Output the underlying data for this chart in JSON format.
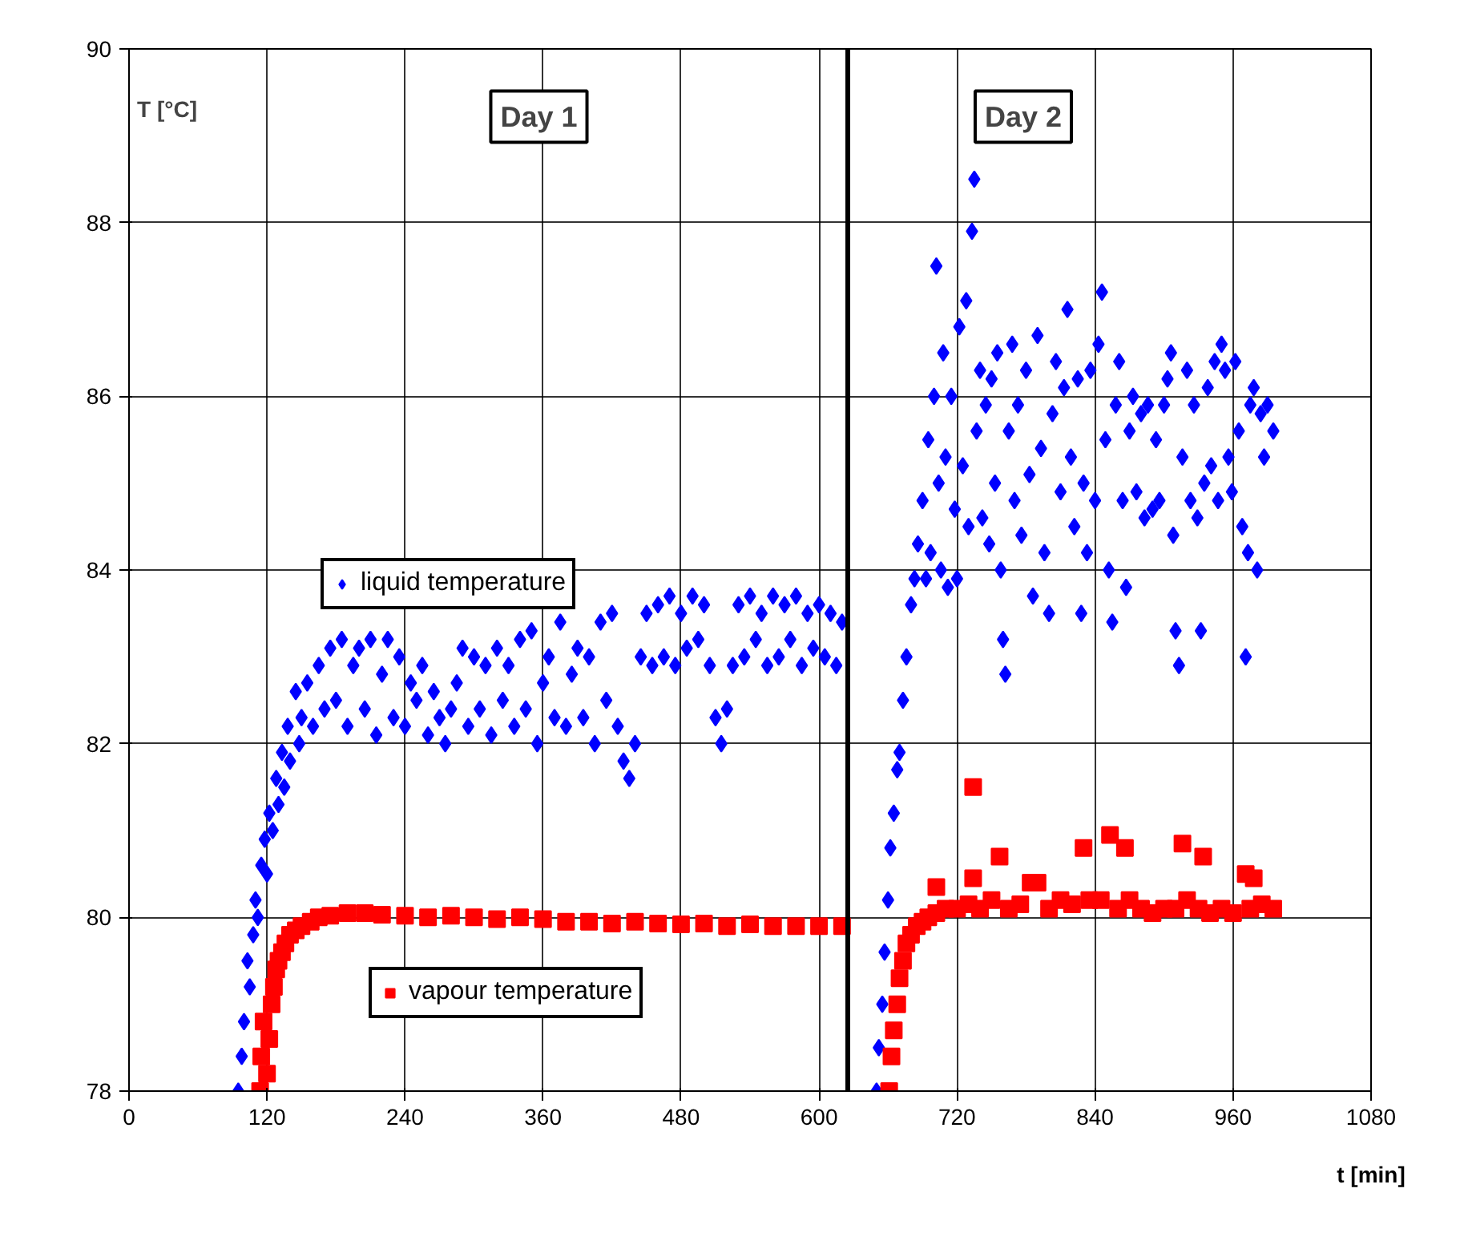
{
  "chart_data": {
    "type": "scatter",
    "xlabel": "t [min]",
    "ylabel": "T [°C]",
    "xlim": [
      0,
      1080
    ],
    "ylim": [
      78,
      90
    ],
    "xticks": [
      0,
      120,
      240,
      360,
      480,
      600,
      720,
      840,
      960,
      1080
    ],
    "yticks": [
      78,
      80,
      82,
      84,
      86,
      88,
      90
    ],
    "grid": true,
    "legend": "left",
    "annotations": [
      "Day 1",
      "Day 2"
    ],
    "ref_lines": [
      {
        "axis": "x",
        "value": 625,
        "color": "#000000"
      }
    ],
    "series": [
      {
        "name": "liquid temperature",
        "color": "#0000ff",
        "marker": "diamond",
        "x": [
          95,
          98,
          100,
          103,
          105,
          108,
          110,
          112,
          115,
          118,
          120,
          122,
          125,
          128,
          130,
          133,
          135,
          138,
          140,
          145,
          148,
          150,
          155,
          160,
          165,
          170,
          175,
          180,
          185,
          190,
          195,
          200,
          205,
          210,
          215,
          220,
          225,
          230,
          235,
          240,
          245,
          250,
          255,
          260,
          265,
          270,
          275,
          280,
          285,
          290,
          295,
          300,
          305,
          310,
          315,
          320,
          325,
          330,
          335,
          340,
          345,
          350,
          355,
          360,
          365,
          370,
          375,
          380,
          385,
          390,
          395,
          400,
          405,
          410,
          415,
          420,
          425,
          430,
          435,
          440,
          445,
          450,
          455,
          460,
          465,
          470,
          475,
          480,
          485,
          490,
          495,
          500,
          505,
          510,
          515,
          520,
          525,
          530,
          535,
          540,
          545,
          550,
          555,
          560,
          565,
          570,
          575,
          580,
          585,
          590,
          595,
          600,
          605,
          610,
          615,
          620,
          650,
          652,
          655,
          657,
          660,
          662,
          665,
          668,
          670,
          673,
          676,
          680,
          683,
          686,
          690,
          693,
          695,
          697,
          700,
          702,
          704,
          706,
          708,
          710,
          712,
          715,
          718,
          720,
          722,
          725,
          728,
          730,
          733,
          735,
          737,
          740,
          742,
          745,
          748,
          750,
          753,
          755,
          758,
          760,
          762,
          765,
          768,
          770,
          773,
          776,
          780,
          783,
          786,
          790,
          793,
          796,
          800,
          803,
          806,
          810,
          813,
          816,
          819,
          822,
          825,
          828,
          830,
          833,
          836,
          840,
          843,
          846,
          849,
          852,
          855,
          858,
          861,
          864,
          867,
          870,
          873,
          876,
          880,
          883,
          886,
          890,
          893,
          896,
          900,
          903,
          906,
          908,
          910,
          913,
          916,
          920,
          923,
          926,
          929,
          932,
          935,
          938,
          941,
          944,
          947,
          950,
          953,
          956,
          959,
          962,
          965,
          968,
          971,
          973,
          975,
          978,
          981,
          984,
          987,
          990,
          995
        ],
        "values": [
          78.0,
          78.4,
          78.8,
          79.5,
          79.2,
          79.8,
          80.2,
          80.0,
          80.6,
          80.9,
          80.5,
          81.2,
          81.0,
          81.6,
          81.3,
          81.9,
          81.5,
          82.2,
          81.8,
          82.6,
          82.0,
          82.3,
          82.7,
          82.2,
          82.9,
          82.4,
          83.1,
          82.5,
          83.2,
          82.2,
          82.9,
          83.1,
          82.4,
          83.2,
          82.1,
          82.8,
          83.2,
          82.3,
          83.0,
          82.2,
          82.7,
          82.5,
          82.9,
          82.1,
          82.6,
          82.3,
          82.0,
          82.4,
          82.7,
          83.1,
          82.2,
          83.0,
          82.4,
          82.9,
          82.1,
          83.1,
          82.5,
          82.9,
          82.2,
          83.2,
          82.4,
          83.3,
          82.0,
          82.7,
          83.0,
          82.3,
          83.4,
          82.2,
          82.8,
          83.1,
          82.3,
          83.0,
          82.0,
          83.4,
          82.5,
          83.5,
          82.2,
          81.8,
          81.6,
          82.0,
          83.0,
          83.5,
          82.9,
          83.6,
          83.0,
          83.7,
          82.9,
          83.5,
          83.1,
          83.7,
          83.2,
          83.6,
          82.9,
          82.3,
          82.0,
          82.4,
          82.9,
          83.6,
          83.0,
          83.7,
          83.2,
          83.5,
          82.9,
          83.7,
          83.0,
          83.6,
          83.2,
          83.7,
          82.9,
          83.5,
          83.1,
          83.6,
          83.0,
          83.5,
          82.9,
          83.4,
          78.0,
          78.5,
          79.0,
          79.6,
          80.2,
          80.8,
          81.2,
          81.7,
          81.9,
          82.5,
          83.0,
          83.6,
          83.9,
          84.3,
          84.8,
          83.9,
          85.5,
          84.2,
          86.0,
          87.5,
          85.0,
          84.0,
          86.5,
          85.3,
          83.8,
          86.0,
          84.7,
          83.9,
          86.8,
          85.2,
          87.1,
          84.5,
          87.9,
          88.5,
          85.6,
          86.3,
          84.6,
          85.9,
          84.3,
          86.2,
          85.0,
          86.5,
          84.0,
          83.2,
          82.8,
          85.6,
          86.6,
          84.8,
          85.9,
          84.4,
          86.3,
          85.1,
          83.7,
          86.7,
          85.4,
          84.2,
          83.5,
          85.8,
          86.4,
          84.9,
          86.1,
          87.0,
          85.3,
          84.5,
          86.2,
          83.5,
          85.0,
          84.2,
          86.3,
          84.8,
          86.6,
          87.2,
          85.5,
          84.0,
          83.4,
          85.9,
          86.4,
          84.8,
          83.8,
          85.6,
          86.0,
          84.9,
          85.8,
          84.6,
          85.9,
          84.7,
          85.5,
          84.8,
          85.9,
          86.2,
          86.5,
          84.4,
          83.3,
          82.9,
          85.3,
          86.3,
          84.8,
          85.9,
          84.6,
          83.3,
          85.0,
          86.1,
          85.2,
          86.4,
          84.8,
          86.6,
          86.3,
          85.3,
          84.9,
          86.4,
          85.6,
          84.5,
          83.0,
          84.2,
          85.9,
          86.1,
          84.0,
          85.8,
          85.3,
          85.9,
          85.6
        ]
      },
      {
        "name": "vapour temperature",
        "color": "#ff0000",
        "marker": "square",
        "x": [
          114,
          115,
          117,
          120,
          122,
          124,
          126,
          128,
          130,
          133,
          136,
          140,
          145,
          150,
          158,
          165,
          175,
          190,
          205,
          220,
          240,
          260,
          280,
          300,
          320,
          340,
          360,
          380,
          400,
          420,
          440,
          460,
          480,
          500,
          520,
          540,
          560,
          580,
          600,
          620,
          661,
          663,
          665,
          668,
          670,
          673,
          676,
          680,
          685,
          690,
          695,
          702,
          702,
          710,
          720,
          730,
          734,
          734,
          740,
          750,
          757,
          765,
          775,
          784,
          790,
          800,
          810,
          820,
          830,
          835,
          845,
          853,
          860,
          866,
          870,
          880,
          890,
          900,
          910,
          916,
          920,
          930,
          934,
          940,
          950,
          960,
          971,
          975,
          978,
          985,
          995
        ],
        "values": [
          78.0,
          78.4,
          78.8,
          78.2,
          78.6,
          79.0,
          79.2,
          79.4,
          79.5,
          79.6,
          79.7,
          79.8,
          79.85,
          79.9,
          79.95,
          80.0,
          80.02,
          80.05,
          80.05,
          80.03,
          80.02,
          80.0,
          80.02,
          80.0,
          79.98,
          80.0,
          79.98,
          79.95,
          79.95,
          79.93,
          79.95,
          79.93,
          79.92,
          79.93,
          79.9,
          79.92,
          79.9,
          79.9,
          79.9,
          79.9,
          78.0,
          78.4,
          78.7,
          79.0,
          79.3,
          79.5,
          79.7,
          79.8,
          79.9,
          79.95,
          80.0,
          80.05,
          80.35,
          80.1,
          80.1,
          80.15,
          80.45,
          81.5,
          80.1,
          80.2,
          80.7,
          80.1,
          80.15,
          80.4,
          80.4,
          80.1,
          80.2,
          80.15,
          80.8,
          80.2,
          80.2,
          80.95,
          80.1,
          80.8,
          80.2,
          80.1,
          80.05,
          80.1,
          80.1,
          80.85,
          80.2,
          80.1,
          80.7,
          80.05,
          80.1,
          80.05,
          80.5,
          80.1,
          80.45,
          80.15,
          80.1
        ]
      }
    ]
  }
}
